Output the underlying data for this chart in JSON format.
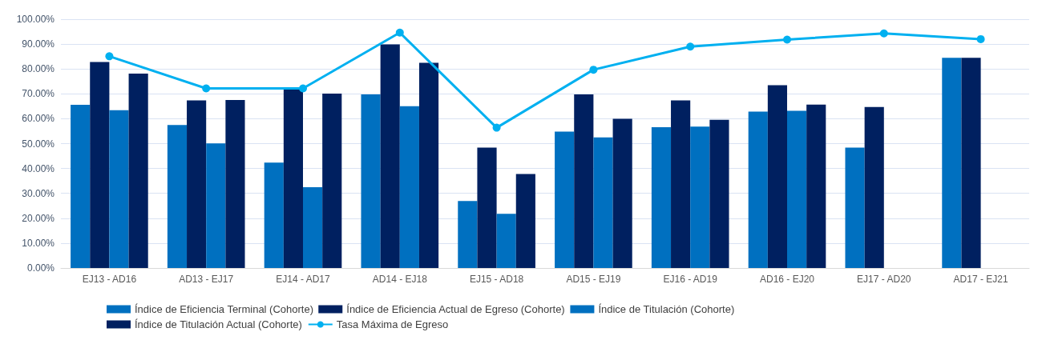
{
  "chart_data": {
    "type": "bar",
    "categories": [
      "EJ13 - AD16",
      "AD13 - EJ17",
      "EJ14 - AD17",
      "AD14 - EJ18",
      "EJ15 - AD18",
      "AD15 - EJ19",
      "EJ16 - AD19",
      "AD16 - EJ20",
      "EJ17 - AD20",
      "AD17 - EJ21"
    ],
    "series": [
      {
        "name": "Índice de Eficiencia Terminal (Cohorte)",
        "color": "#0070c0",
        "values": [
          65.6,
          57.5,
          42.4,
          69.8,
          26.9,
          54.8,
          56.6,
          62.9,
          48.4,
          84.5
        ]
      },
      {
        "name": "Índice de Eficiencia Actual de Egreso (Cohorte)",
        "color": "#002060",
        "values": [
          82.8,
          67.4,
          71.8,
          89.9,
          48.4,
          69.8,
          67.4,
          73.5,
          64.7,
          84.5
        ]
      },
      {
        "name": "Índice de Titulación (Cohorte)",
        "color": "#0070c0",
        "values": [
          63.4,
          50.1,
          32.5,
          65.0,
          21.8,
          52.5,
          56.8,
          63.2,
          null,
          null
        ]
      },
      {
        "name": "Índice de Titulación Actual (Cohorte)",
        "color": "#002060",
        "values": [
          78.1,
          67.5,
          70.1,
          82.5,
          37.8,
          60.0,
          59.6,
          65.7,
          null,
          null
        ]
      },
      {
        "name": "Tasa Máxima de Egreso",
        "type": "line",
        "color": "#00b0f0",
        "values": [
          85.1,
          72.2,
          72.2,
          94.6,
          56.4,
          79.7,
          89.0,
          91.8,
          94.3,
          92.0
        ]
      }
    ],
    "ylim": [
      0,
      100
    ],
    "yticks": [
      {
        "value": 0,
        "label": "0.00%"
      },
      {
        "value": 10,
        "label": "10.00%"
      },
      {
        "value": 20,
        "label": "20.00%"
      },
      {
        "value": 30,
        "label": "30.00%"
      },
      {
        "value": 40,
        "label": "40.00%"
      },
      {
        "value": 50,
        "label": "50.00%"
      },
      {
        "value": 60,
        "label": "60.00%"
      },
      {
        "value": 70,
        "label": "70.00%"
      },
      {
        "value": 80,
        "label": "80.00%"
      },
      {
        "value": 90,
        "label": "90.00%"
      },
      {
        "value": 100,
        "label": "100.00%"
      }
    ],
    "grid": "y",
    "legend": "bottom",
    "marker": "circle",
    "line_style": "solid"
  }
}
